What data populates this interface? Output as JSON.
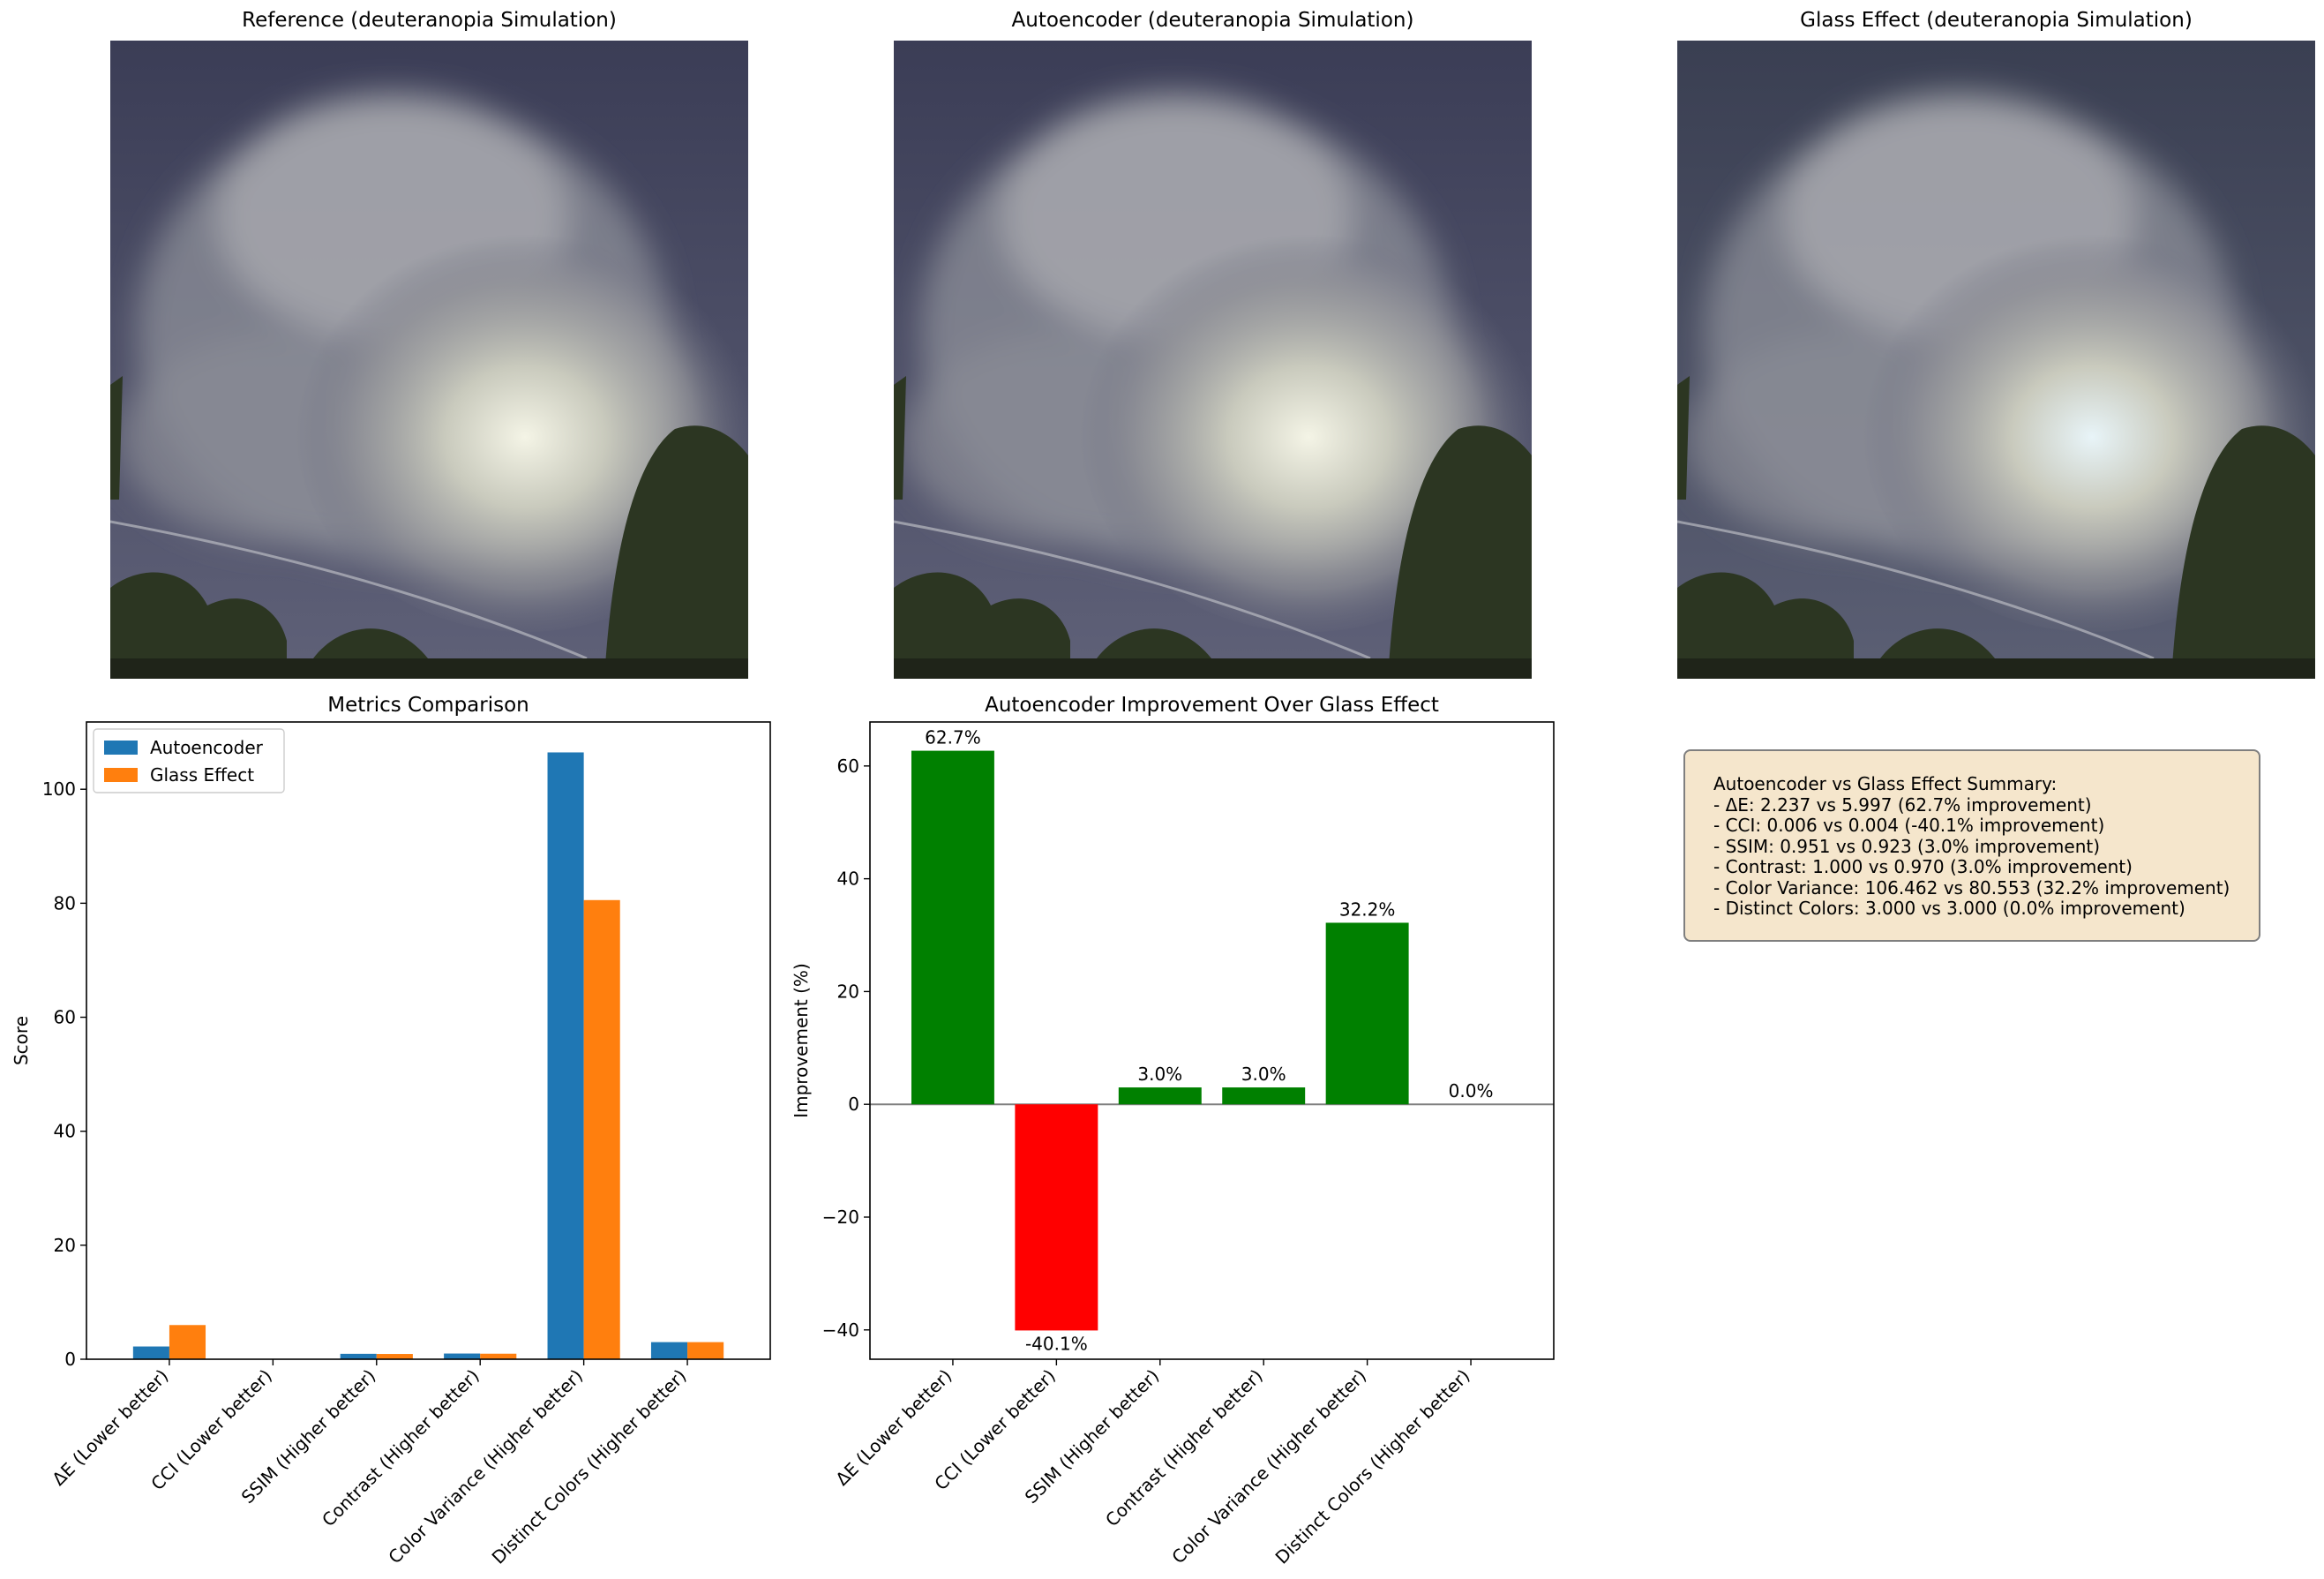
{
  "panels": {
    "reference_title": "Reference (deuteranopia Simulation)",
    "autoencoder_title": "Autoencoder (deuteranopia Simulation)",
    "glass_title": "Glass Effect (deuteranopia Simulation)"
  },
  "summary": {
    "heading": "Autoencoder vs Glass Effect Summary:",
    "lines": [
      "- ΔE: 2.237 vs 5.997 (62.7% improvement)",
      "- CCI: 0.006 vs 0.004 (-40.1% improvement)",
      "- SSIM: 0.951 vs 0.923 (3.0% improvement)",
      "- Contrast: 1.000 vs 0.970 (3.0% improvement)",
      "- Color Variance: 106.462 vs 80.553 (32.2% improvement)",
      "- Distinct Colors: 3.000 vs 3.000 (0.0% improvement)"
    ]
  },
  "chart_data": [
    {
      "type": "bar",
      "title": "Metrics Comparison",
      "xlabel": "",
      "ylabel": "Score",
      "categories": [
        "ΔE (Lower better)",
        "CCI (Lower better)",
        "SSIM (Higher better)",
        "Contrast (Higher better)",
        "Color Variance (Higher better)",
        "Distinct Colors (Higher better)"
      ],
      "series": [
        {
          "name": "Autoencoder",
          "color": "#1f77b4",
          "values": [
            2.237,
            0.006,
            0.951,
            1.0,
            106.462,
            3.0
          ]
        },
        {
          "name": "Glass Effect",
          "color": "#ff7f0e",
          "values": [
            5.997,
            0.004,
            0.923,
            0.97,
            80.553,
            3.0
          ]
        }
      ],
      "ylim": [
        0,
        111.8
      ],
      "yticks": [
        0,
        20,
        40,
        60,
        80,
        100
      ],
      "legend": "top-left",
      "grid": false
    },
    {
      "type": "bar",
      "title": "Autoencoder Improvement Over Glass Effect",
      "xlabel": "",
      "ylabel": "Improvement (%)",
      "categories": [
        "ΔE (Lower better)",
        "CCI (Lower better)",
        "SSIM (Higher better)",
        "Contrast (Higher better)",
        "Color Variance (Higher better)",
        "Distinct Colors (Higher better)"
      ],
      "values": [
        62.7,
        -40.1,
        3.0,
        3.0,
        32.2,
        0.0
      ],
      "data_labels": [
        "62.7%",
        "-40.1%",
        "3.0%",
        "3.0%",
        "32.2%",
        "0.0%"
      ],
      "positive_color": "#008000",
      "negative_color": "#ff0000",
      "ylim": [
        -45.2,
        67.8
      ],
      "yticks": [
        -40,
        -20,
        0,
        20,
        40,
        60
      ],
      "zero_line": true,
      "grid": false
    }
  ]
}
